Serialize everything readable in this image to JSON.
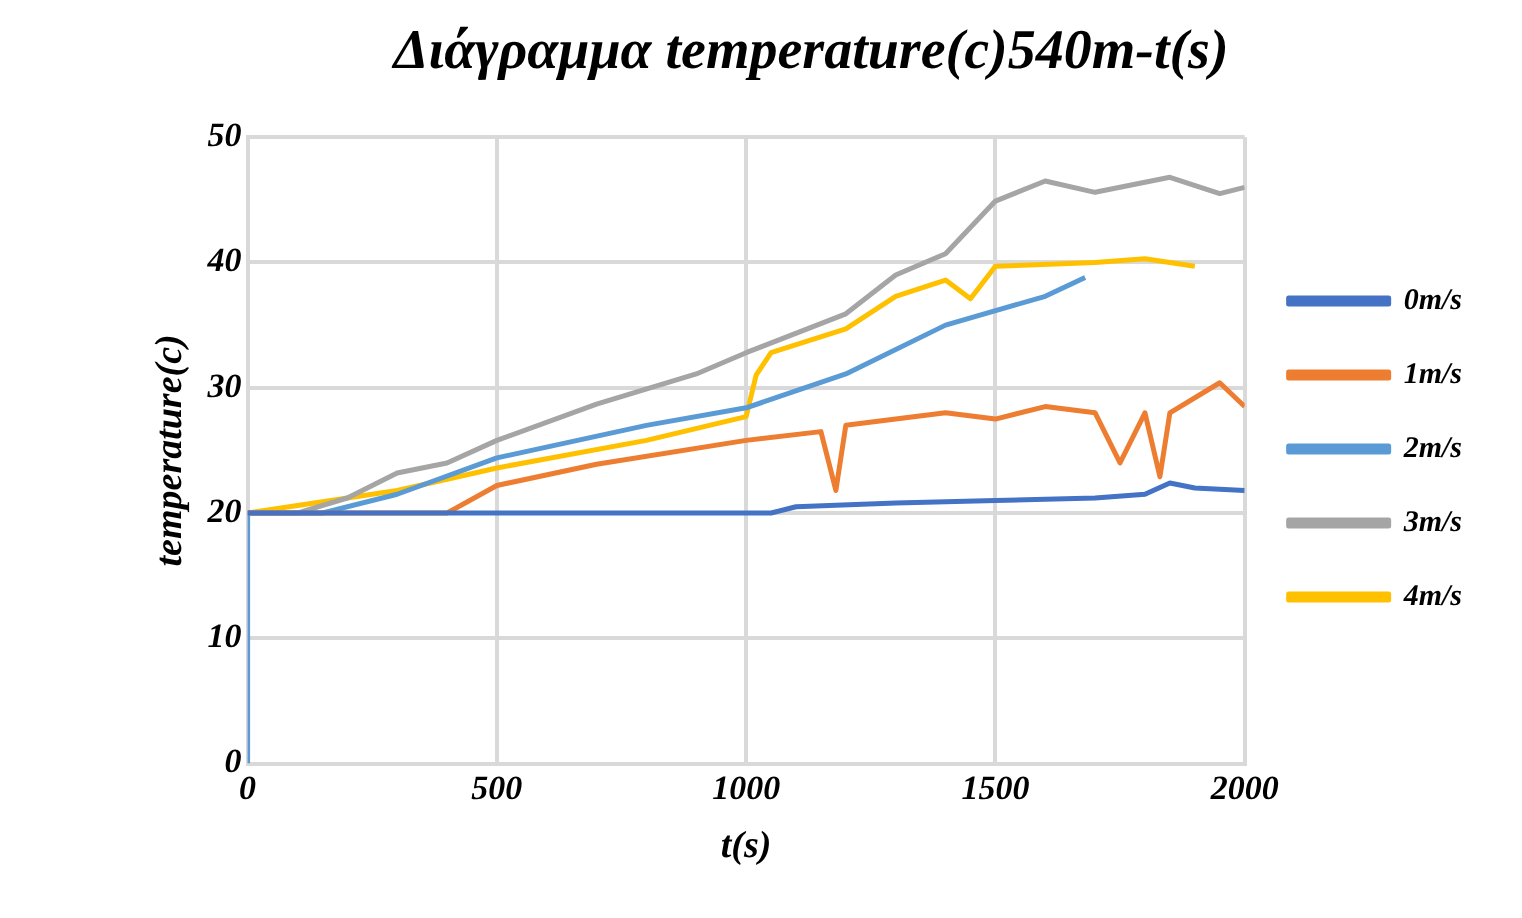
{
  "chart_data": {
    "type": "line",
    "title": "Διάγραμμα temperature(c)540m-t(s)",
    "xlabel": "t(s)",
    "ylabel": "temperature(c)",
    "xlim": [
      0,
      2000
    ],
    "xticks": [
      0,
      500,
      1000,
      1500,
      2000
    ],
    "ylim": [
      0,
      50
    ],
    "yticks": [
      0,
      10,
      20,
      30,
      40,
      50
    ],
    "grid": true,
    "legend": "right",
    "marker": "none",
    "line_style": "solid",
    "series": [
      {
        "name": "0m/s",
        "color": "#4472c4",
        "x": [
          0,
          400,
          1050,
          1100,
          1300,
          1500,
          1700,
          1800,
          1850,
          1900,
          2000
        ],
        "values": [
          20,
          20,
          20,
          20.5,
          20.8,
          21,
          21.2,
          21.5,
          22.4,
          22,
          21.8
        ]
      },
      {
        "name": "1m/s",
        "color": "#ed7d31",
        "x": [
          0,
          400,
          500,
          700,
          1000,
          1150,
          1180,
          1200,
          1400,
          1500,
          1600,
          1700,
          1750,
          1800,
          1830,
          1850,
          1950,
          2000
        ],
        "values": [
          20,
          20,
          22.2,
          23.9,
          25.8,
          26.5,
          21.8,
          27,
          28,
          27.5,
          28.5,
          28,
          24,
          28,
          22.9,
          28,
          30.4,
          28.5
        ]
      },
      {
        "name": "2m/s",
        "color": "#5b9bd5",
        "x": [
          0,
          0,
          150,
          300,
          500,
          800,
          1000,
          1200,
          1400,
          1600,
          1680
        ],
        "values": [
          0,
          20,
          20,
          21.5,
          24.4,
          27,
          28.4,
          31.1,
          35,
          37.3,
          38.8
        ]
      },
      {
        "name": "3m/s",
        "color": "#a5a5a5",
        "x": [
          0,
          100,
          200,
          300,
          400,
          500,
          700,
          900,
          1000,
          1200,
          1300,
          1400,
          1500,
          1600,
          1700,
          1850,
          1950,
          2000
        ],
        "values": [
          20,
          20,
          21.2,
          23.2,
          24,
          25.8,
          28.7,
          31.1,
          32.8,
          35.9,
          39,
          40.7,
          44.9,
          46.5,
          45.6,
          46.8,
          45.5,
          46
        ]
      },
      {
        "name": "4m/s",
        "color": "#ffc000",
        "x": [
          0,
          300,
          500,
          800,
          1000,
          1020,
          1050,
          1200,
          1300,
          1400,
          1450,
          1500,
          1700,
          1800,
          1900
        ],
        "values": [
          20,
          21.8,
          23.6,
          25.8,
          27.7,
          31,
          32.8,
          34.7,
          37.3,
          38.6,
          37.1,
          39.7,
          40,
          40.3,
          39.7
        ]
      }
    ]
  }
}
